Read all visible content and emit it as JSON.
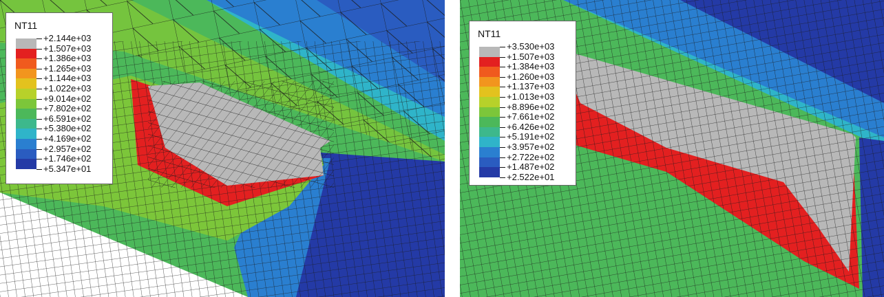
{
  "panels": [
    {
      "legend_title": "NT11",
      "values": [
        "+2.144e+03",
        "+1.507e+03",
        "+1.386e+03",
        "+1.265e+03",
        "+1.144e+03",
        "+1.022e+03",
        "+9.014e+02",
        "+7.802e+02",
        "+6.591e+02",
        "+5.380e+02",
        "+4.169e+02",
        "+2.957e+02",
        "+1.746e+02",
        "+5.347e+01"
      ]
    },
    {
      "legend_title": "NT11",
      "values": [
        "+3.530e+03",
        "+1.507e+03",
        "+1.384e+03",
        "+1.260e+03",
        "+1.137e+03",
        "+1.013e+03",
        "+8.896e+02",
        "+7.661e+02",
        "+6.426e+02",
        "+5.191e+02",
        "+3.957e+02",
        "+2.722e+02",
        "+1.487e+02",
        "+2.522e+01"
      ]
    }
  ],
  "colors": {
    "band_colors": [
      "#b8b8b8",
      "#e32020",
      "#f05a1e",
      "#f2951e",
      "#e3c21e",
      "#b7d12a",
      "#7cc63a",
      "#4cb85a",
      "#3db88c",
      "#2fb4c9",
      "#2a7fd0",
      "#2a5cc0",
      "#243aa6"
    ],
    "mesh_line": "#1a1a1a"
  }
}
